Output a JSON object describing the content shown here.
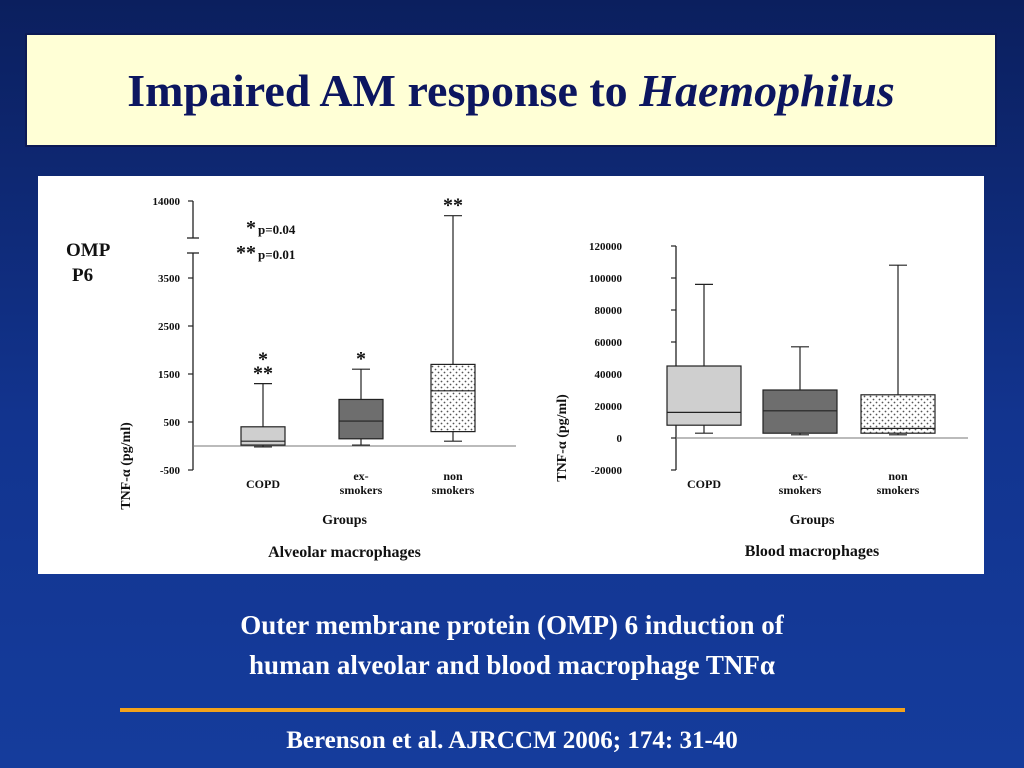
{
  "slide": {
    "title_main": "Impaired AM response to",
    "title_italic": "Haemophilus",
    "caption_line1": "Outer membrane protein (OMP) 6 induction of",
    "caption_line2": "human alveolar and blood macrophage TNFα",
    "citation": "Berenson et al. AJRCCM 2006; 174: 31-40",
    "colors": {
      "background": "#12348f",
      "title_box": "#ffffd6",
      "title_text": "#0c1660",
      "rule": "#f4a21a"
    }
  },
  "chart_data": [
    {
      "type": "box",
      "subtitle": "Alveolar macrophages",
      "side_label": [
        "OMP",
        "P6"
      ],
      "xlabel": "Groups",
      "ylabel": "TNF-α (pg/ml)",
      "axis_break": true,
      "y_ticks": [
        "14000",
        "3500",
        "2500",
        "1500",
        "500",
        "-500"
      ],
      "y_tick_values": [
        14000,
        3500,
        2500,
        1500,
        500,
        -500
      ],
      "ylim": [
        -500,
        14000
      ],
      "significance_legend": [
        {
          "marker": "*",
          "text": "p=0.04"
        },
        {
          "marker": "**",
          "text": "p=0.01"
        }
      ],
      "categories": [
        {
          "label": [
            "COPD"
          ],
          "fill": "light",
          "whisker_low": -20,
          "q1": 20,
          "median": 100,
          "q3": 400,
          "whisker_high": 1300,
          "annotations": [
            "*",
            "**"
          ]
        },
        {
          "label": [
            "ex-",
            "smokers"
          ],
          "fill": "dark",
          "whisker_low": 20,
          "q1": 150,
          "median": 520,
          "q3": 970,
          "whisker_high": 1600,
          "annotations": [
            "*"
          ]
        },
        {
          "label": [
            "non",
            "smokers"
          ],
          "fill": "dotted",
          "whisker_low": 100,
          "q1": 300,
          "median": 1150,
          "q3": 1700,
          "whisker_high": 12000,
          "annotations": [
            "**"
          ]
        }
      ]
    },
    {
      "type": "box",
      "subtitle": "Blood macrophages",
      "xlabel": "Groups",
      "ylabel": "TNF-α (pg/ml)",
      "y_ticks": [
        "120000",
        "100000",
        "80000",
        "60000",
        "40000",
        "20000",
        "0",
        "-20000"
      ],
      "y_tick_values": [
        120000,
        100000,
        80000,
        60000,
        40000,
        20000,
        0,
        -20000
      ],
      "ylim": [
        -20000,
        120000
      ],
      "categories": [
        {
          "label": [
            "COPD"
          ],
          "fill": "light",
          "whisker_low": 3000,
          "q1": 8000,
          "median": 16000,
          "q3": 45000,
          "whisker_high": 96000
        },
        {
          "label": [
            "ex-",
            "smokers"
          ],
          "fill": "dark",
          "whisker_low": 2000,
          "q1": 3000,
          "median": 17000,
          "q3": 30000,
          "whisker_high": 57000
        },
        {
          "label": [
            "non",
            "smokers"
          ],
          "fill": "dotted",
          "whisker_low": 2000,
          "q1": 3000,
          "median": 6000,
          "q3": 27000,
          "whisker_high": 108000
        }
      ]
    }
  ]
}
